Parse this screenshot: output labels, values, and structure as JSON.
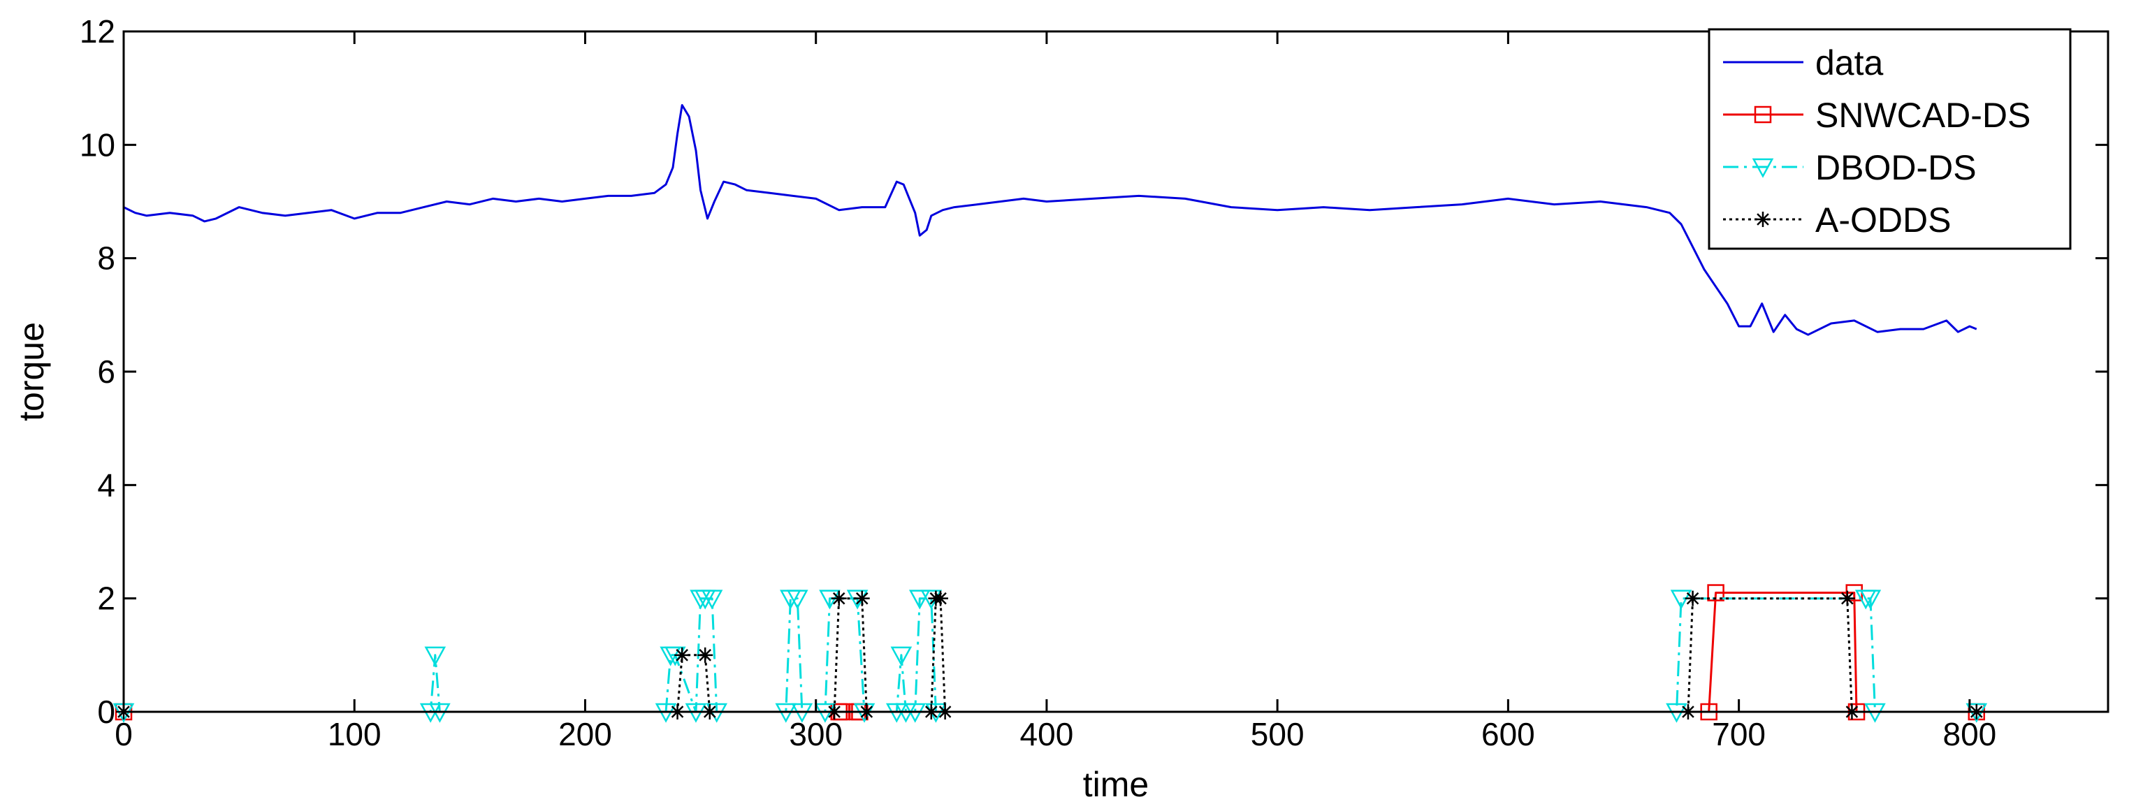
{
  "chart_data": {
    "type": "line",
    "xlabel": "time",
    "ylabel": "torque",
    "xlim": [
      0,
      860
    ],
    "ylim": [
      0,
      12
    ],
    "xticks": [
      0,
      100,
      200,
      300,
      400,
      500,
      600,
      700,
      800
    ],
    "yticks": [
      0,
      2,
      4,
      6,
      8,
      10,
      12
    ],
    "grid": false,
    "legend_position": "top-right",
    "series": [
      {
        "name": "data",
        "color": "#0000dd",
        "marker": "none",
        "linestyle": "solid",
        "x": [
          0,
          5,
          10,
          20,
          30,
          35,
          40,
          50,
          60,
          70,
          80,
          90,
          100,
          110,
          120,
          130,
          140,
          150,
          160,
          170,
          180,
          190,
          200,
          210,
          220,
          230,
          235,
          238,
          240,
          242,
          245,
          248,
          250,
          253,
          256,
          260,
          265,
          270,
          280,
          290,
          300,
          310,
          320,
          330,
          335,
          338,
          340,
          343,
          345,
          348,
          350,
          355,
          360,
          370,
          380,
          390,
          400,
          420,
          440,
          460,
          480,
          500,
          520,
          540,
          560,
          580,
          600,
          620,
          640,
          660,
          670,
          675,
          680,
          685,
          690,
          695,
          700,
          705,
          710,
          715,
          720,
          725,
          730,
          740,
          750,
          760,
          770,
          780,
          790,
          795,
          800,
          803
        ],
        "y": [
          8.9,
          8.8,
          8.75,
          8.8,
          8.75,
          8.65,
          8.7,
          8.9,
          8.8,
          8.75,
          8.8,
          8.85,
          8.7,
          8.8,
          8.8,
          8.9,
          9.0,
          8.95,
          9.05,
          9.0,
          9.05,
          9.0,
          9.05,
          9.1,
          9.1,
          9.15,
          9.3,
          9.6,
          10.2,
          10.7,
          10.5,
          9.9,
          9.2,
          8.7,
          9.0,
          9.35,
          9.3,
          9.2,
          9.15,
          9.1,
          9.05,
          8.85,
          8.9,
          8.9,
          9.35,
          9.3,
          9.1,
          8.8,
          8.4,
          8.5,
          8.75,
          8.85,
          8.9,
          8.95,
          9.0,
          9.05,
          9.0,
          9.05,
          9.1,
          9.05,
          8.9,
          8.85,
          8.9,
          8.85,
          8.9,
          8.95,
          9.05,
          8.95,
          9.0,
          8.9,
          8.8,
          8.6,
          8.2,
          7.8,
          7.5,
          7.2,
          6.8,
          6.8,
          7.2,
          6.7,
          7.0,
          6.75,
          6.65,
          6.85,
          6.9,
          6.7,
          6.75,
          6.75,
          6.9,
          6.7,
          6.8,
          6.75
        ]
      },
      {
        "name": "SNWCAD-DS",
        "color": "#ee0000",
        "marker": "square",
        "linestyle": "solid",
        "x": [
          0,
          310,
          311,
          318,
          319,
          687,
          690,
          750,
          751,
          803
        ],
        "y": [
          0,
          0,
          0,
          0,
          0,
          0,
          2.1,
          2.1,
          0,
          0
        ]
      },
      {
        "name": "DBOD-DS",
        "color": "#00dddd",
        "marker": "triangle-down",
        "linestyle": "dashdot",
        "x": [
          0,
          133,
          135,
          137,
          235,
          237,
          239,
          248,
          250,
          252,
          255,
          257,
          287,
          289,
          292,
          294,
          304,
          306,
          318,
          321,
          335,
          337,
          339,
          343,
          345,
          350,
          352,
          673,
          675,
          755,
          757,
          759,
          803
        ],
        "y": [
          0,
          0,
          1.0,
          0,
          0,
          1.0,
          1.0,
          0,
          2.0,
          2.0,
          2.0,
          0,
          0,
          2.0,
          2.0,
          0,
          0,
          2.0,
          2.0,
          0,
          0,
          1.0,
          0,
          0,
          2.0,
          2.0,
          0,
          0,
          2.0,
          2.0,
          2.0,
          0,
          0
        ]
      },
      {
        "name": "A-ODDS",
        "color": "#000000",
        "marker": "star",
        "linestyle": "dotted",
        "x": [
          0,
          240,
          242,
          252,
          254,
          308,
          310,
          320,
          322,
          350,
          352,
          354,
          356,
          678,
          680,
          747,
          749,
          803
        ],
        "y": [
          0,
          0,
          1.0,
          1.0,
          0,
          0,
          2.0,
          2.0,
          0,
          0,
          2.0,
          2.0,
          0,
          0,
          2.0,
          2.0,
          0,
          0
        ]
      }
    ]
  }
}
